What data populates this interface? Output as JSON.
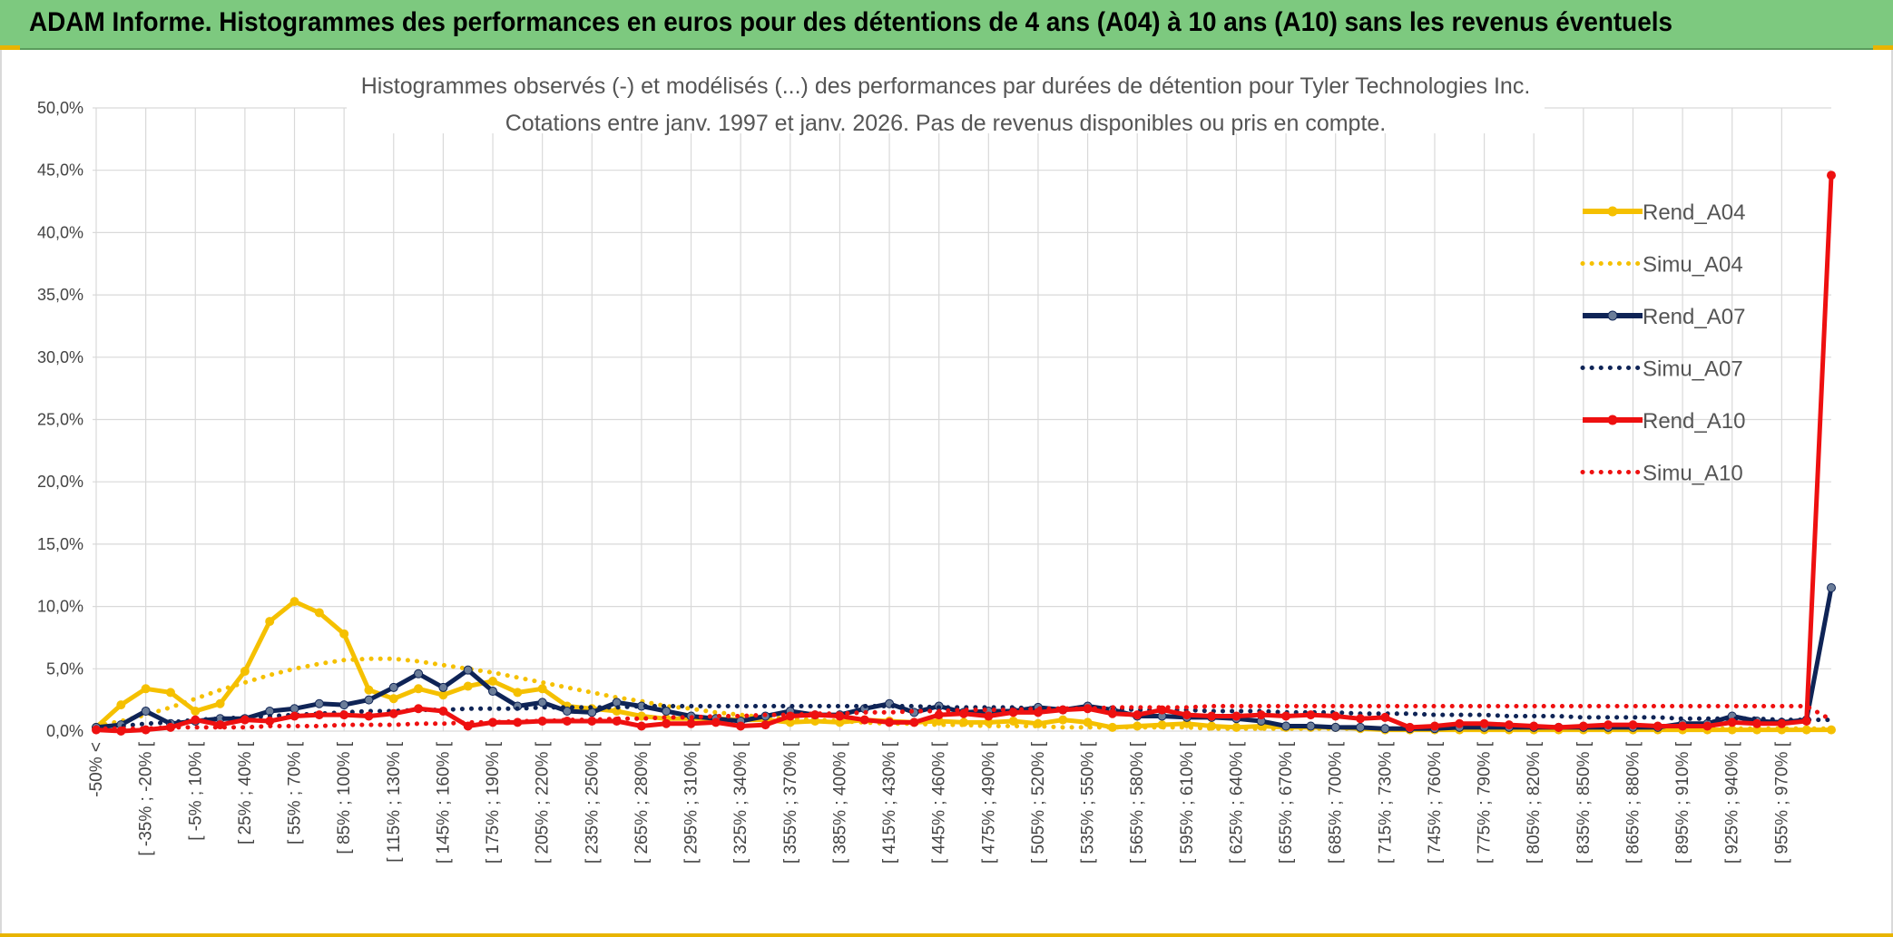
{
  "header": {
    "title": "ADAM Informe. Histogrammes des performances en euros pour des détentions de 4 ans (A04) à 10 ans (A10) sans les revenus éventuels"
  },
  "colors": {
    "banner": "#7dc97f",
    "a04": "#f5c000",
    "a07": "#0f2456",
    "a10": "#ee1010",
    "grid": "#d9d9d9"
  },
  "chart_data": {
    "type": "line",
    "title": "Histogrammes observés (-) et modélisés (...) des performances par durées de détention pour Tyler Technologies Inc.",
    "subtitle": "Cotations entre janv. 1997 et janv. 2026. Pas de revenus disponibles ou pris en compte.",
    "ylim": [
      0,
      50
    ],
    "yticks": [
      "0,0%",
      "5,0%",
      "10,0%",
      "15,0%",
      "20,0%",
      "25,0%",
      "30,0%",
      "35,0%",
      "40,0%",
      "45,0%",
      "50,0%"
    ],
    "xtick_labels": [
      "-50% <",
      "[ -35% ; -20% [",
      "[ -5% ; 10% [",
      "[ 25% ; 40% [",
      "[ 55% ; 70% [",
      "[ 85% ; 100% [",
      "[ 115% ; 130% [",
      "[ 145% ; 160% [",
      "[ 175% ; 190% [",
      "[ 205% ; 220% [",
      "[ 235% ; 250% [",
      "[ 265% ; 280% [",
      "[ 295% ; 310% [",
      "[ 325% ; 340% [",
      "[ 355% ; 370% [",
      "[ 385% ; 400% [",
      "[ 415% ; 430% [",
      "[ 445% ; 460% [",
      "[ 475% ; 490% [",
      "[ 505% ; 520% [",
      "[ 535% ; 550% [",
      "[ 565% ; 580% [",
      "[ 595% ; 610% [",
      "[ 625% ; 640% [",
      "[ 655% ; 670% [",
      "[ 685% ; 700% [",
      "[ 715% ; 730% [",
      "[ 745% ; 760% [",
      "[ 775% ; 790% [",
      "[ 805% ; 820% [",
      "[ 835% ; 850% [",
      "[ 865% ; 880% [",
      "[ 895% ; 910% [",
      "[ 925% ; 940% [",
      "[ 955% ; 970% ["
    ],
    "n_bins": 71,
    "series": [
      {
        "name": "Rend_A04",
        "style": "solid",
        "color": "#f5c000",
        "values": [
          0.3,
          2.1,
          3.4,
          3.1,
          1.6,
          2.2,
          4.8,
          8.8,
          10.4,
          9.5,
          7.8,
          3.3,
          2.6,
          3.4,
          2.9,
          3.6,
          4.0,
          3.1,
          3.4,
          2.0,
          1.8,
          1.6,
          1.2,
          1.0,
          1.0,
          1.0,
          0.9,
          0.9,
          0.7,
          0.8,
          0.7,
          0.9,
          0.8,
          0.7,
          0.8,
          0.7,
          0.7,
          0.8,
          0.6,
          0.9,
          0.7,
          0.3,
          0.4,
          0.5,
          0.6,
          0.4,
          0.3,
          0.4,
          0.3,
          0.3,
          0.3,
          0.2,
          0.1,
          0.1,
          0.1,
          0.1,
          0.1,
          0.1,
          0.1,
          0.1,
          0.1,
          0.1,
          0.1,
          0.1,
          0.1,
          0.1,
          0.1,
          0.1,
          0.1,
          0.1,
          0.1
        ]
      },
      {
        "name": "Simu_A04",
        "style": "dotted",
        "color": "#f5c000",
        "values": [
          0.4,
          0.8,
          1.3,
          1.9,
          2.6,
          3.3,
          3.9,
          4.5,
          5.0,
          5.4,
          5.7,
          5.8,
          5.8,
          5.6,
          5.3,
          5.0,
          4.7,
          4.3,
          3.9,
          3.5,
          3.1,
          2.7,
          2.4,
          2.0,
          1.8,
          1.5,
          1.3,
          1.1,
          1.0,
          0.9,
          0.8,
          0.7,
          0.6,
          0.6,
          0.5,
          0.5,
          0.4,
          0.4,
          0.4,
          0.3,
          0.3,
          0.3,
          0.3,
          0.3,
          0.3,
          0.2,
          0.2,
          0.2,
          0.2,
          0.2,
          0.2,
          0.2,
          0.2,
          0.2,
          0.2,
          0.2,
          0.2,
          0.2,
          0.2,
          0.2,
          0.2,
          0.2,
          0.2,
          0.2,
          0.2,
          0.2,
          0.2,
          0.2,
          0.2,
          0.2,
          0.2
        ]
      },
      {
        "name": "Rend_A07",
        "style": "solid",
        "color": "#0f2456",
        "values": [
          0.3,
          0.5,
          1.6,
          0.6,
          0.8,
          1.0,
          1.0,
          1.6,
          1.8,
          2.2,
          2.1,
          2.5,
          3.5,
          4.6,
          3.5,
          4.9,
          3.2,
          2.0,
          2.3,
          1.6,
          1.5,
          2.3,
          2.0,
          1.6,
          1.2,
          1.0,
          0.8,
          1.2,
          1.6,
          1.3,
          1.3,
          1.8,
          2.2,
          1.5,
          2.0,
          1.5,
          1.6,
          1.6,
          1.9,
          1.7,
          2.0,
          1.7,
          1.2,
          1.2,
          1.1,
          1.1,
          1.0,
          0.8,
          0.4,
          0.4,
          0.3,
          0.3,
          0.2,
          0.2,
          0.2,
          0.3,
          0.3,
          0.3,
          0.3,
          0.3,
          0.3,
          0.3,
          0.3,
          0.3,
          0.6,
          0.6,
          1.2,
          0.8,
          0.7,
          0.9,
          11.5
        ]
      },
      {
        "name": "Simu_A07",
        "style": "dotted",
        "color": "#0f2456",
        "values": [
          0.3,
          0.4,
          0.6,
          0.7,
          0.9,
          1.0,
          1.1,
          1.2,
          1.3,
          1.4,
          1.5,
          1.6,
          1.6,
          1.7,
          1.7,
          1.8,
          1.8,
          1.8,
          1.9,
          1.9,
          1.9,
          1.9,
          2.0,
          2.0,
          2.0,
          2.0,
          2.0,
          2.0,
          2.0,
          2.0,
          2.0,
          2.0,
          2.0,
          2.0,
          1.9,
          1.9,
          1.9,
          1.9,
          1.8,
          1.8,
          1.8,
          1.8,
          1.7,
          1.7,
          1.7,
          1.6,
          1.6,
          1.6,
          1.5,
          1.5,
          1.5,
          1.4,
          1.4,
          1.4,
          1.3,
          1.3,
          1.3,
          1.2,
          1.2,
          1.2,
          1.1,
          1.1,
          1.1,
          1.1,
          1.0,
          1.0,
          1.0,
          1.0,
          0.9,
          0.9,
          0.9
        ]
      },
      {
        "name": "Rend_A10",
        "style": "solid",
        "color": "#ee1010",
        "values": [
          0.1,
          0.0,
          0.1,
          0.3,
          0.9,
          0.5,
          0.9,
          0.8,
          1.2,
          1.3,
          1.3,
          1.2,
          1.4,
          1.8,
          1.6,
          0.4,
          0.7,
          0.7,
          0.8,
          0.8,
          0.8,
          0.8,
          0.4,
          0.6,
          0.6,
          0.7,
          0.4,
          0.5,
          1.2,
          1.3,
          1.2,
          0.9,
          0.7,
          0.7,
          1.3,
          1.4,
          1.2,
          1.5,
          1.5,
          1.7,
          1.8,
          1.4,
          1.3,
          1.7,
          1.3,
          1.2,
          1.2,
          1.3,
          1.2,
          1.3,
          1.2,
          1.0,
          1.1,
          0.3,
          0.4,
          0.6,
          0.6,
          0.5,
          0.4,
          0.3,
          0.4,
          0.5,
          0.5,
          0.4,
          0.4,
          0.4,
          0.7,
          0.6,
          0.6,
          0.8,
          44.6
        ]
      },
      {
        "name": "Simu_A10",
        "style": "dotted",
        "color": "#ee1010",
        "values": [
          0.2,
          0.2,
          0.2,
          0.3,
          0.3,
          0.3,
          0.3,
          0.4,
          0.4,
          0.4,
          0.5,
          0.5,
          0.5,
          0.6,
          0.6,
          0.7,
          0.7,
          0.8,
          0.8,
          0.9,
          0.9,
          1.0,
          1.0,
          1.1,
          1.1,
          1.2,
          1.2,
          1.3,
          1.3,
          1.4,
          1.4,
          1.5,
          1.5,
          1.6,
          1.6,
          1.7,
          1.7,
          1.7,
          1.8,
          1.8,
          1.8,
          1.9,
          1.9,
          1.9,
          1.9,
          2.0,
          2.0,
          2.0,
          2.0,
          2.0,
          2.0,
          2.0,
          2.0,
          2.0,
          2.0,
          2.0,
          2.0,
          2.0,
          2.0,
          2.0,
          2.0,
          2.0,
          2.0,
          2.0,
          2.0,
          2.0,
          2.0,
          2.0,
          2.0,
          2.0,
          0.9
        ]
      }
    ],
    "legend_position": "right",
    "grid": true
  }
}
